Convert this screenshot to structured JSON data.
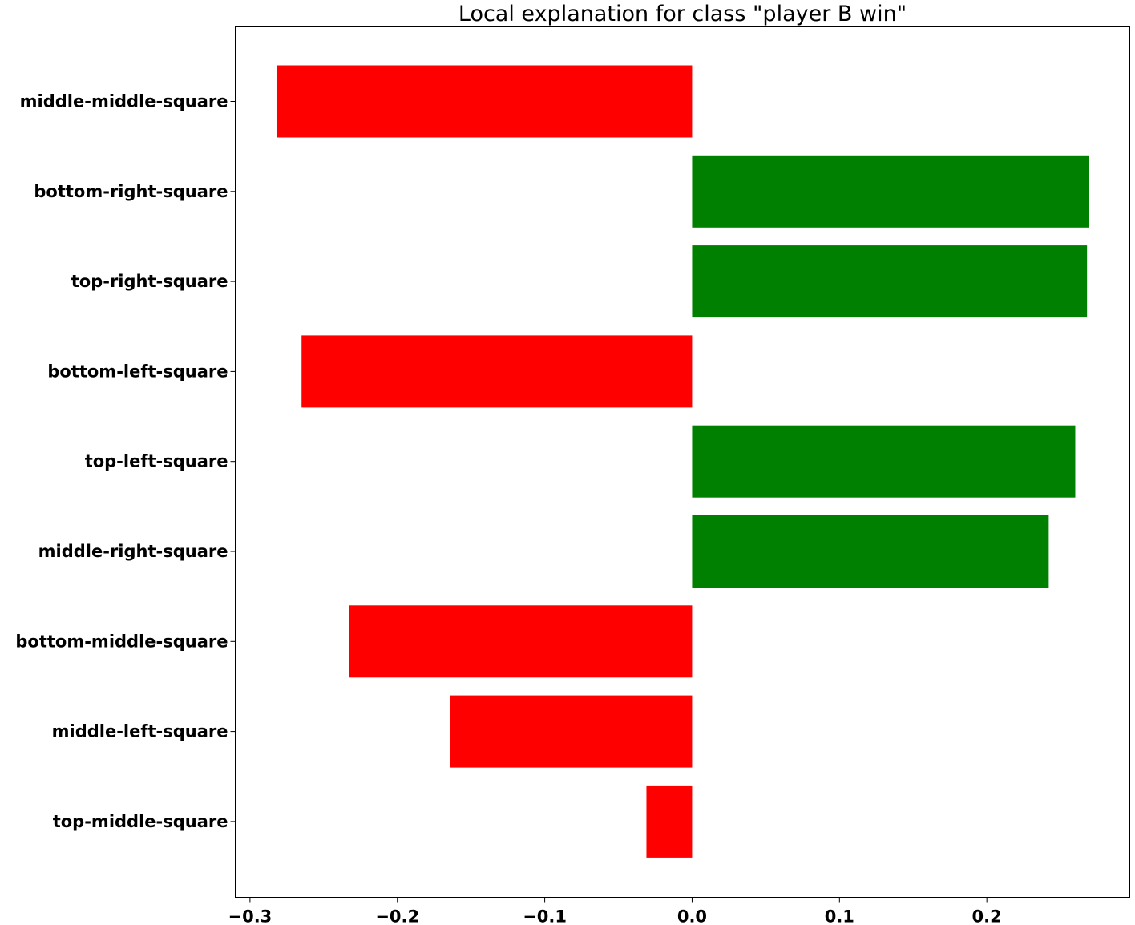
{
  "chart_data": {
    "type": "bar",
    "orientation": "horizontal",
    "title": "Local explanation for class \"player B win\"",
    "xlabel": "",
    "ylabel": "",
    "categories": [
      "middle-middle-square",
      "bottom-right-square",
      "top-right-square",
      "bottom-left-square",
      "top-left-square",
      "middle-right-square",
      "bottom-middle-square",
      "middle-left-square",
      "top-middle-square"
    ],
    "values": [
      -0.282,
      0.269,
      0.268,
      -0.265,
      0.26,
      0.242,
      -0.233,
      -0.164,
      -0.031
    ],
    "xlim": [
      -0.31,
      0.297
    ],
    "xticks": [
      -0.3,
      -0.2,
      -0.1,
      0.0,
      0.1,
      0.2
    ],
    "xtick_labels": [
      "−0.3",
      "−0.2",
      "−0.1",
      "0.0",
      "0.1",
      "0.2"
    ],
    "colors": {
      "positive": "#008000",
      "negative": "#ff0000"
    },
    "grid": false,
    "legend": "none"
  }
}
